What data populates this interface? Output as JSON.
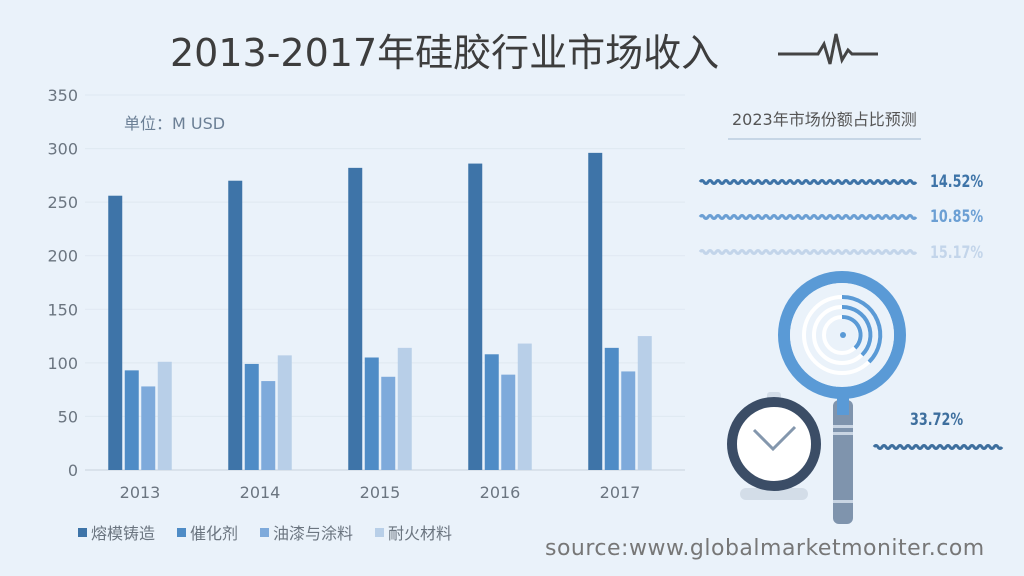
{
  "title": "2013-2017年硅胶行业市场收入",
  "unit_label": "单位：M USD",
  "source": "source:www.globalmarketmoniter.com",
  "chart_data": {
    "type": "bar",
    "title": "2013-2017年硅胶行业市场收入",
    "xlabel": "",
    "ylabel": "M USD",
    "ylim": [
      0,
      350
    ],
    "yticks": [
      0,
      50,
      100,
      150,
      200,
      250,
      300,
      350
    ],
    "grid": true,
    "legend_position": "bottom-left",
    "categories": [
      "2013",
      "2014",
      "2015",
      "2016",
      "2017"
    ],
    "series": [
      {
        "name": "熔模铸造",
        "color": "#3e74a8",
        "values": [
          256,
          270,
          282,
          286,
          296
        ]
      },
      {
        "name": "催化剂",
        "color": "#4f8cc6",
        "values": [
          93,
          99,
          105,
          108,
          114
        ]
      },
      {
        "name": "油漆与涂料",
        "color": "#7eaadb",
        "values": [
          78,
          83,
          87,
          89,
          92
        ]
      },
      {
        "name": "耐火材料",
        "color": "#b8cfe8",
        "values": [
          101,
          107,
          114,
          118,
          125
        ]
      }
    ]
  },
  "side": {
    "title": "2023年市场份额占比预测",
    "shares": [
      {
        "label": "14.52%",
        "color": "#3e74a8"
      },
      {
        "label": "10.85%",
        "color": "#6b9fd4"
      },
      {
        "label": "15.17%",
        "color": "#c3d5ea"
      },
      {
        "label": "33.72%",
        "color": "#3e6f9e"
      }
    ]
  }
}
